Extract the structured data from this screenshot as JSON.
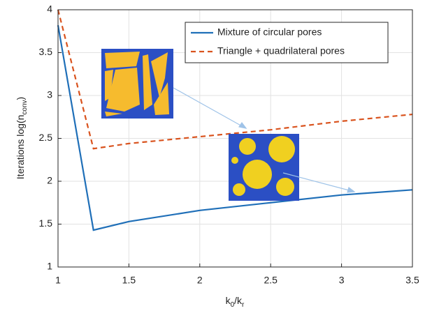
{
  "chart_data": {
    "type": "line",
    "xlabel_parts": [
      "k",
      "0",
      "/k",
      "r"
    ],
    "ylabel_parts": [
      "Iterations log(n",
      "conv",
      ")"
    ],
    "x": [
      1,
      1.25,
      1.5,
      2,
      2.5,
      3,
      3.5
    ],
    "series": [
      {
        "name": "Mixture of circular pores",
        "color": "#1f6fb8",
        "dash": false,
        "values": [
          3.82,
          1.43,
          1.53,
          1.66,
          1.75,
          1.84,
          1.9
        ]
      },
      {
        "name": "Triangle + quadrilateral pores",
        "color": "#d9531e",
        "dash": true,
        "values": [
          4.0,
          2.38,
          2.44,
          2.52,
          2.6,
          2.7,
          2.78
        ]
      }
    ],
    "xlim": [
      1,
      3.5
    ],
    "xticks": [
      1,
      1.5,
      2,
      2.5,
      3,
      3.5
    ],
    "ylim": [
      1,
      4
    ],
    "yticks": [
      1,
      1.5,
      2,
      2.5,
      3,
      3.5,
      4
    ],
    "grid": true,
    "legend": "upper right"
  }
}
